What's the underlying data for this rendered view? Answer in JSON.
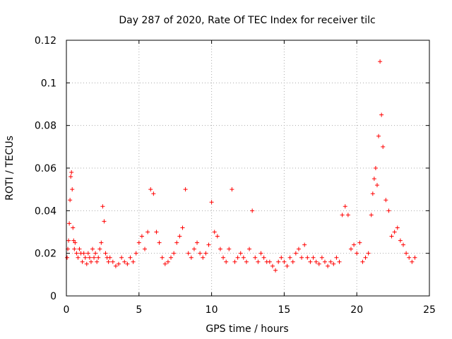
{
  "chart_data": {
    "type": "scatter",
    "title": "Day 287 of 2020, Rate Of TEC Index for receiver tilc",
    "xlabel": "GPS time / hours",
    "ylabel": "ROTI / TECUs",
    "xlim": [
      0,
      25
    ],
    "ylim": [
      0,
      0.12
    ],
    "x_ticks": [
      "0",
      "5",
      "10",
      "15",
      "20",
      "25"
    ],
    "y_ticks": [
      "0",
      "0.02",
      "0.04",
      "0.06",
      "0.08",
      "0.1",
      "0.12"
    ],
    "grid": true,
    "legend": "none",
    "marker": "+",
    "color": "#ff0000",
    "series": [
      {
        "x": [
          0.05,
          0.1,
          0.15,
          0.2,
          0.25,
          0.3,
          0.35,
          0.4,
          0.45,
          0.5,
          0.55,
          0.6,
          0.7,
          0.8,
          0.9,
          1.0,
          1.1,
          1.2,
          1.3,
          1.4,
          1.5,
          1.6,
          1.7,
          1.8,
          1.9,
          2.0,
          2.1,
          2.2,
          2.3,
          2.4,
          2.5,
          2.6,
          2.7,
          2.8,
          2.9,
          3.0,
          3.2,
          3.4,
          3.6,
          3.8,
          4.0,
          4.2,
          4.4,
          4.6,
          4.8,
          5.0,
          5.2,
          5.4,
          5.6,
          5.8,
          6.0,
          6.2,
          6.4,
          6.6,
          6.8,
          7.0,
          7.2,
          7.4,
          7.6,
          7.8,
          8.0,
          8.2,
          8.4,
          8.6,
          8.8,
          9.0,
          9.2,
          9.4,
          9.6,
          9.8,
          10.0,
          10.2,
          10.4,
          10.6,
          10.8,
          11.0,
          11.2,
          11.4,
          11.6,
          11.8,
          12.0,
          12.2,
          12.4,
          12.6,
          12.8,
          13.0,
          13.2,
          13.4,
          13.6,
          13.8,
          14.0,
          14.2,
          14.4,
          14.6,
          14.8,
          15.0,
          15.2,
          15.4,
          15.6,
          15.8,
          16.0,
          16.2,
          16.4,
          16.6,
          16.8,
          17.0,
          17.2,
          17.4,
          17.6,
          17.8,
          18.0,
          18.2,
          18.4,
          18.6,
          18.8,
          19.0,
          19.2,
          19.4,
          19.6,
          19.8,
          20.0,
          20.2,
          20.4,
          20.6,
          20.8,
          21.0,
          21.1,
          21.2,
          21.3,
          21.4,
          21.5,
          21.6,
          21.7,
          21.8,
          22.0,
          22.2,
          22.4,
          22.6,
          22.8,
          23.0,
          23.2,
          23.4,
          23.6,
          23.8,
          24.0
        ],
        "y": [
          0.018,
          0.022,
          0.026,
          0.034,
          0.045,
          0.056,
          0.058,
          0.05,
          0.032,
          0.026,
          0.022,
          0.025,
          0.02,
          0.018,
          0.022,
          0.02,
          0.016,
          0.02,
          0.018,
          0.015,
          0.02,
          0.018,
          0.016,
          0.022,
          0.018,
          0.02,
          0.016,
          0.018,
          0.022,
          0.025,
          0.042,
          0.035,
          0.02,
          0.018,
          0.016,
          0.018,
          0.016,
          0.014,
          0.015,
          0.018,
          0.016,
          0.015,
          0.018,
          0.016,
          0.02,
          0.025,
          0.028,
          0.022,
          0.03,
          0.05,
          0.048,
          0.03,
          0.025,
          0.018,
          0.015,
          0.016,
          0.018,
          0.02,
          0.025,
          0.028,
          0.032,
          0.05,
          0.02,
          0.018,
          0.022,
          0.025,
          0.02,
          0.018,
          0.02,
          0.024,
          0.044,
          0.03,
          0.028,
          0.022,
          0.018,
          0.016,
          0.022,
          0.05,
          0.016,
          0.018,
          0.02,
          0.018,
          0.016,
          0.022,
          0.04,
          0.018,
          0.016,
          0.02,
          0.018,
          0.016,
          0.016,
          0.014,
          0.012,
          0.016,
          0.018,
          0.016,
          0.014,
          0.018,
          0.016,
          0.02,
          0.022,
          0.018,
          0.024,
          0.018,
          0.016,
          0.018,
          0.016,
          0.015,
          0.018,
          0.016,
          0.014,
          0.016,
          0.015,
          0.018,
          0.016,
          0.038,
          0.042,
          0.038,
          0.022,
          0.024,
          0.02,
          0.025,
          0.016,
          0.018,
          0.02,
          0.038,
          0.048,
          0.055,
          0.06,
          0.052,
          0.075,
          0.11,
          0.085,
          0.07,
          0.045,
          0.04,
          0.028,
          0.03,
          0.032,
          0.026,
          0.024,
          0.02,
          0.018,
          0.016,
          0.018
        ]
      }
    ]
  }
}
